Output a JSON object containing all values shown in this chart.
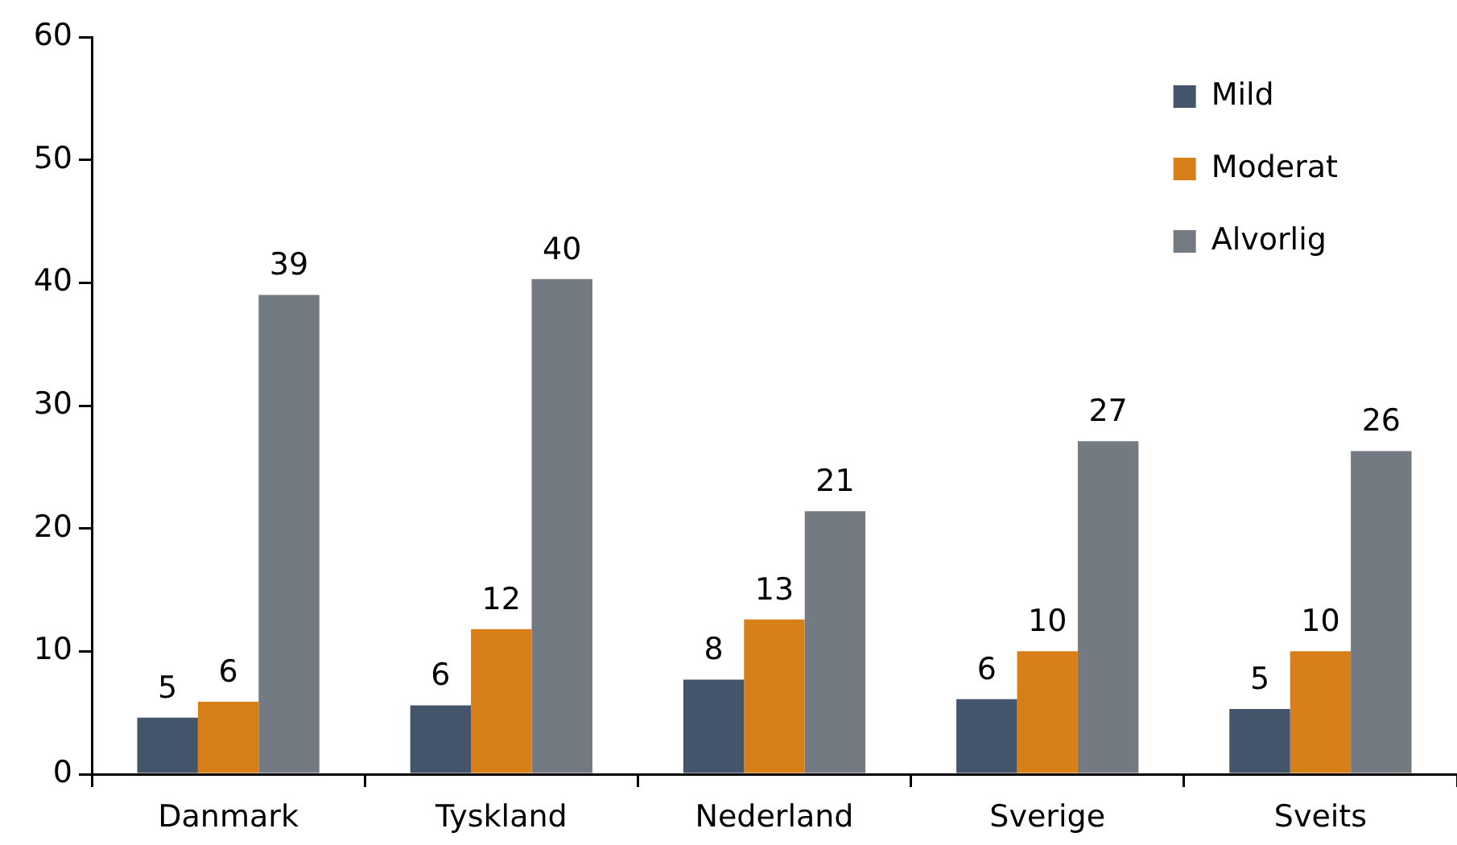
{
  "chart_data": {
    "type": "bar",
    "categories": [
      "Danmark",
      "Tyskland",
      "Nederland",
      "Sverige",
      "Sveits"
    ],
    "series": [
      {
        "name": "Mild",
        "color": "#44546a",
        "values": [
          4.6,
          5.6,
          7.7,
          6.1,
          5.3
        ],
        "value_labels": [
          "5",
          "6",
          "8",
          "6",
          "5"
        ]
      },
      {
        "name": "Moderat",
        "color": "#d77f18",
        "values": [
          5.9,
          11.8,
          12.6,
          10.0,
          10.0
        ],
        "value_labels": [
          "6",
          "12",
          "13",
          "10",
          "10"
        ]
      },
      {
        "name": "Alvorlig",
        "color": "#737a81",
        "values": [
          39.0,
          40.3,
          21.4,
          27.1,
          26.3
        ],
        "value_labels": [
          "39",
          "40",
          "21",
          "27",
          "26"
        ]
      }
    ],
    "ylim": [
      0,
      60
    ],
    "yticks": [
      0,
      10,
      20,
      30,
      40,
      50,
      60
    ],
    "grid": false,
    "legend": "top right"
  }
}
